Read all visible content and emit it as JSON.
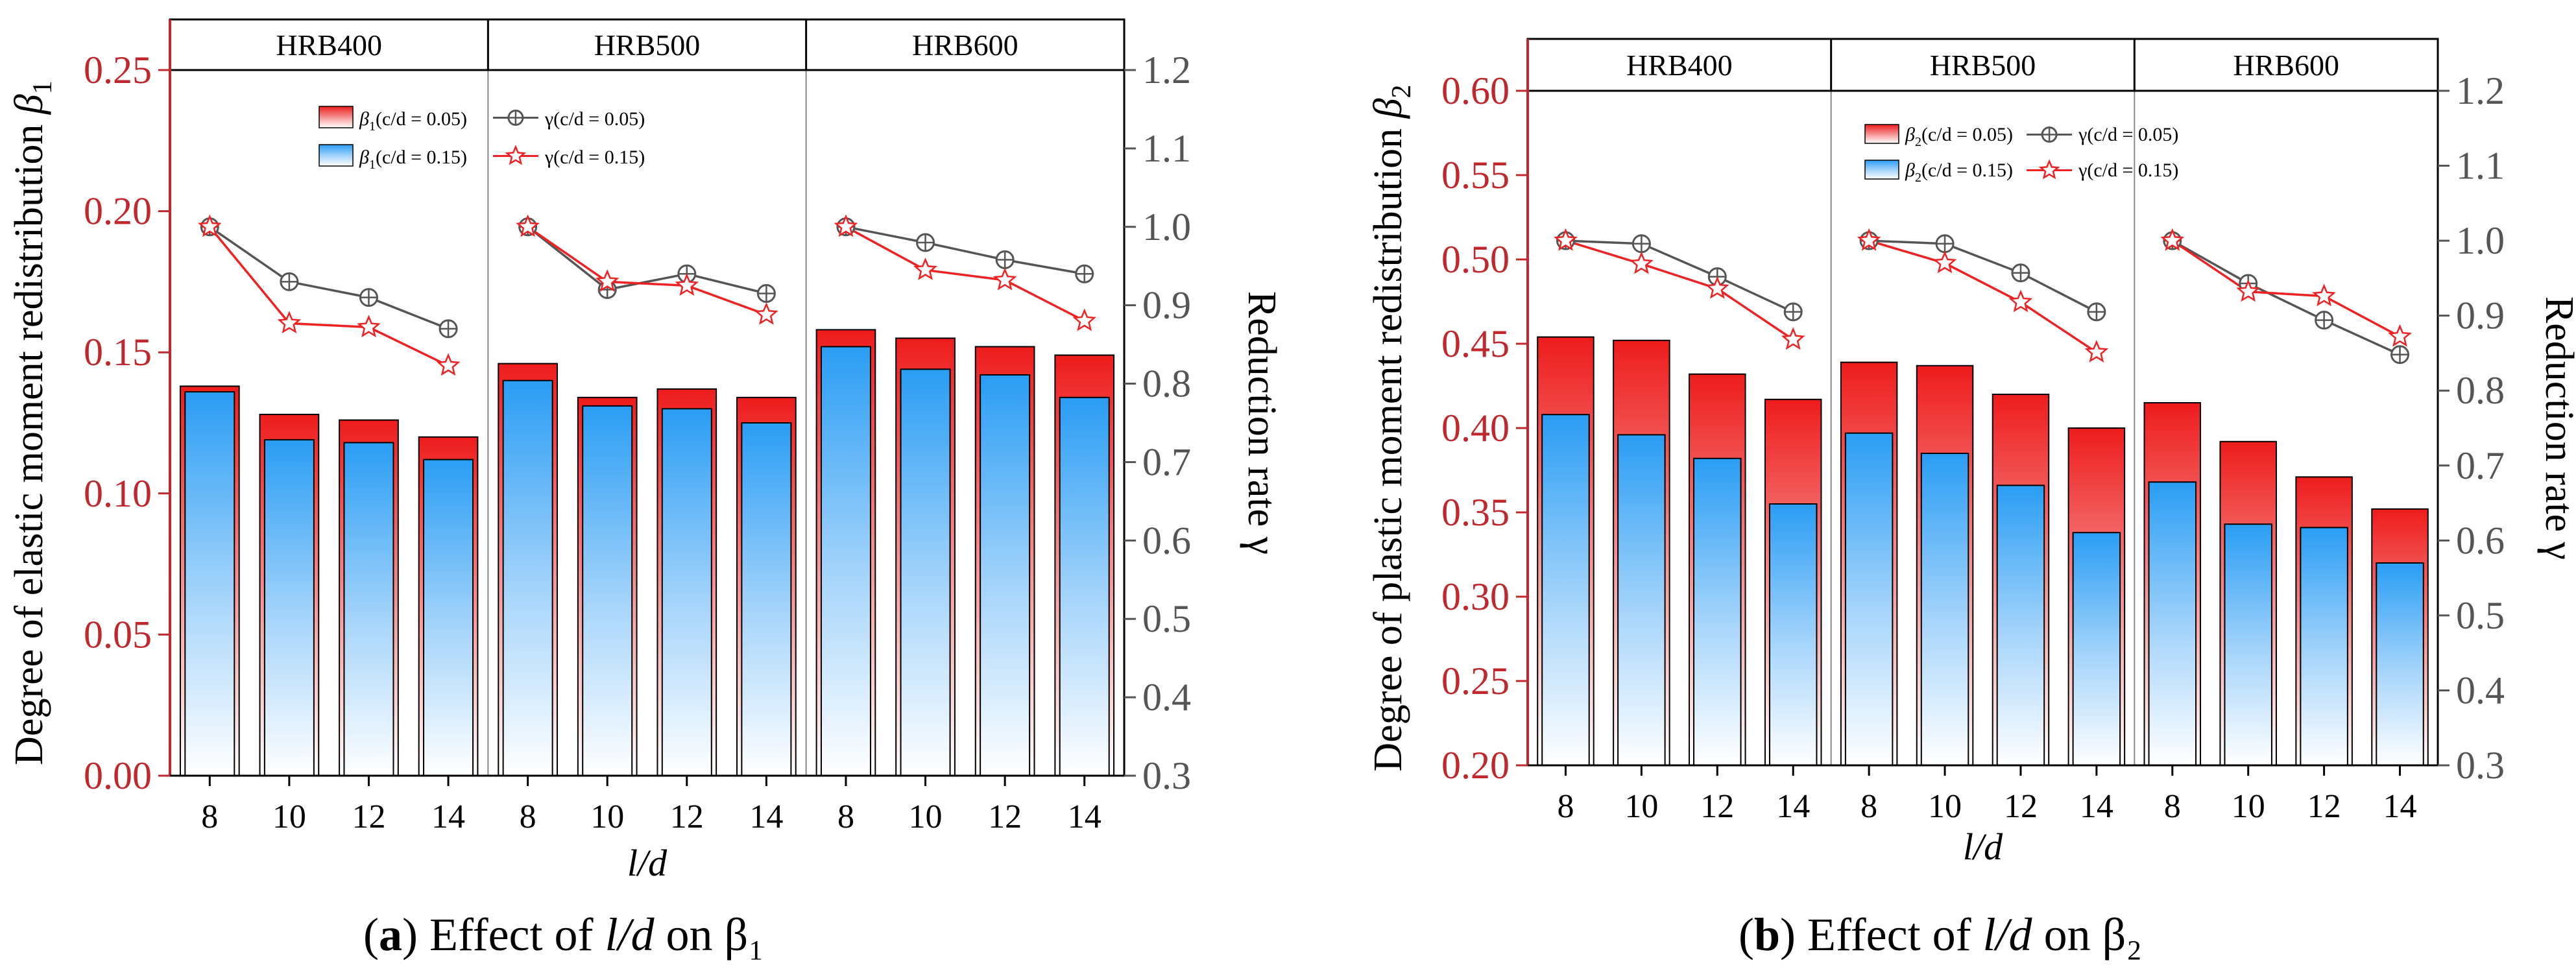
{
  "figure": {
    "captions": [
      {
        "label": "a",
        "prefix": "Effect of ",
        "italic": "l/d",
        "suffix": " on β₁"
      },
      {
        "label": "b",
        "prefix": "Effect of ",
        "italic": "l/d",
        "suffix": " on β₂"
      }
    ]
  },
  "chart_data": [
    {
      "type": "bar+line",
      "panel": "a",
      "groups": [
        "HRB400",
        "HRB500",
        "HRB600"
      ],
      "categories": [
        "8",
        "10",
        "12",
        "14",
        "8",
        "10",
        "12",
        "14",
        "8",
        "10",
        "12",
        "14"
      ],
      "xlabel": "l/d",
      "ylabel": "Degree of elastic moment redistribution",
      "ylabel_symbol": "β",
      "ylabel_sub": "1",
      "y2label": "Reduction rate γ",
      "ylim": [
        0,
        0.25
      ],
      "yticks": [
        "0.00",
        "0.05",
        "0.10",
        "0.15",
        "0.20",
        "0.25"
      ],
      "y2lim": [
        0.3,
        1.2
      ],
      "y2ticks": [
        "0.3",
        "0.4",
        "0.5",
        "0.6",
        "0.7",
        "0.8",
        "0.9",
        "1.0",
        "1.1",
        "1.2"
      ],
      "bar_series": [
        {
          "name": "β1(c/d = 0.05)",
          "sym": "β",
          "sub": "1",
          "cond": "(c/d = 0.05)",
          "color": "#ee1c1c",
          "values": [
            0.138,
            0.128,
            0.126,
            0.12,
            0.146,
            0.134,
            0.137,
            0.134,
            0.158,
            0.155,
            0.152,
            0.149
          ]
        },
        {
          "name": "β1(c/d = 0.15)",
          "sym": "β",
          "sub": "1",
          "cond": "(c/d = 0.15)",
          "color": "#2a9df4",
          "values": [
            0.136,
            0.119,
            0.118,
            0.112,
            0.14,
            0.131,
            0.13,
            0.125,
            0.152,
            0.144,
            0.142,
            0.134
          ]
        }
      ],
      "line_series": [
        {
          "name": "γ(c/d = 0.05)",
          "sym": "γ",
          "cond": "(c/d = 0.05)",
          "color": "#555555",
          "marker": "circle-cross",
          "values": [
            [
              1.0,
              0.93,
              0.91,
              0.87
            ],
            [
              1.0,
              0.92,
              0.94,
              0.915
            ],
            [
              1.0,
              0.98,
              0.958,
              0.94
            ]
          ]
        },
        {
          "name": "γ(c/d = 0.15)",
          "sym": "γ",
          "cond": "(c/d = 0.15)",
          "color": "#ee2222",
          "marker": "star",
          "values": [
            [
              1.0,
              0.877,
              0.872,
              0.823
            ],
            [
              1.0,
              0.93,
              0.925,
              0.888
            ],
            [
              1.0,
              0.945,
              0.932,
              0.88
            ]
          ]
        }
      ]
    },
    {
      "type": "bar+line",
      "panel": "b",
      "groups": [
        "HRB400",
        "HRB500",
        "HRB600"
      ],
      "categories": [
        "8",
        "10",
        "12",
        "14",
        "8",
        "10",
        "12",
        "14",
        "8",
        "10",
        "12",
        "14"
      ],
      "xlabel": "l/d",
      "ylabel": "Degree of plastic moment redistribution",
      "ylabel_symbol": "β",
      "ylabel_sub": "2",
      "y2label": "Reduction rate γ",
      "ylim": [
        0.2,
        0.6
      ],
      "yticks": [
        "0.20",
        "0.25",
        "0.30",
        "0.35",
        "0.40",
        "0.45",
        "0.50",
        "0.55",
        "0.60"
      ],
      "y2lim": [
        0.3,
        1.2
      ],
      "y2ticks": [
        "0.3",
        "0.4",
        "0.5",
        "0.6",
        "0.7",
        "0.8",
        "0.9",
        "1.0",
        "1.1",
        "1.2"
      ],
      "bar_series": [
        {
          "name": "β2(c/d = 0.05)",
          "sym": "β",
          "sub": "2",
          "cond": "(c/d = 0.05)",
          "color": "#ee1c1c",
          "values": [
            0.454,
            0.452,
            0.432,
            0.417,
            0.439,
            0.437,
            0.42,
            0.4,
            0.415,
            0.392,
            0.371,
            0.352
          ]
        },
        {
          "name": "β2(c/d = 0.15)",
          "sym": "β",
          "sub": "2",
          "cond": "(c/d = 0.15)",
          "color": "#2a9df4",
          "values": [
            0.408,
            0.396,
            0.382,
            0.355,
            0.397,
            0.385,
            0.366,
            0.338,
            0.368,
            0.343,
            0.341,
            0.32
          ]
        }
      ],
      "line_series": [
        {
          "name": "γ(c/d = 0.05)",
          "sym": "γ",
          "cond": "(c/d = 0.05)",
          "color": "#555555",
          "marker": "circle-cross",
          "values": [
            [
              1.0,
              0.996,
              0.952,
              0.905
            ],
            [
              1.0,
              0.996,
              0.957,
              0.905
            ],
            [
              1.0,
              0.943,
              0.894,
              0.848
            ]
          ]
        },
        {
          "name": "γ(c/d = 0.15)",
          "sym": "γ",
          "cond": "(c/d = 0.15)",
          "color": "#ee2222",
          "marker": "star",
          "values": [
            [
              1.0,
              0.969,
              0.936,
              0.868
            ],
            [
              1.0,
              0.97,
              0.918,
              0.851
            ],
            [
              1.0,
              0.932,
              0.926,
              0.872
            ]
          ]
        }
      ]
    }
  ]
}
